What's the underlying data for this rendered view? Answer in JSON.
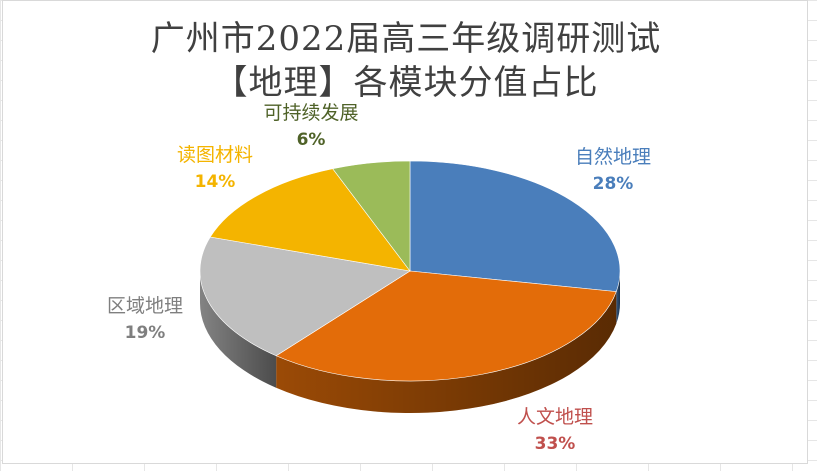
{
  "chart_data": {
    "type": "pie",
    "title": [
      "广州市2022届高三年级调研测试",
      "【地理】各模块分值占比"
    ],
    "categories": [
      "自然地理",
      "人文地理",
      "区域地理",
      "读图材料",
      "可持续发展"
    ],
    "values": [
      28,
      33,
      19,
      14,
      6
    ],
    "value_labels": [
      "28%",
      "33%",
      "19%",
      "14%",
      "6%"
    ],
    "colors": [
      "#4a7ebb",
      "#e36c09",
      "#bfbfbf",
      "#f4b400",
      "#9bbb59"
    ],
    "label_colors": [
      "#4a7ebb",
      "#c0504d",
      "#7f7f7f",
      "#f4b400",
      "#4f6228"
    ],
    "style": "3d-pie"
  }
}
